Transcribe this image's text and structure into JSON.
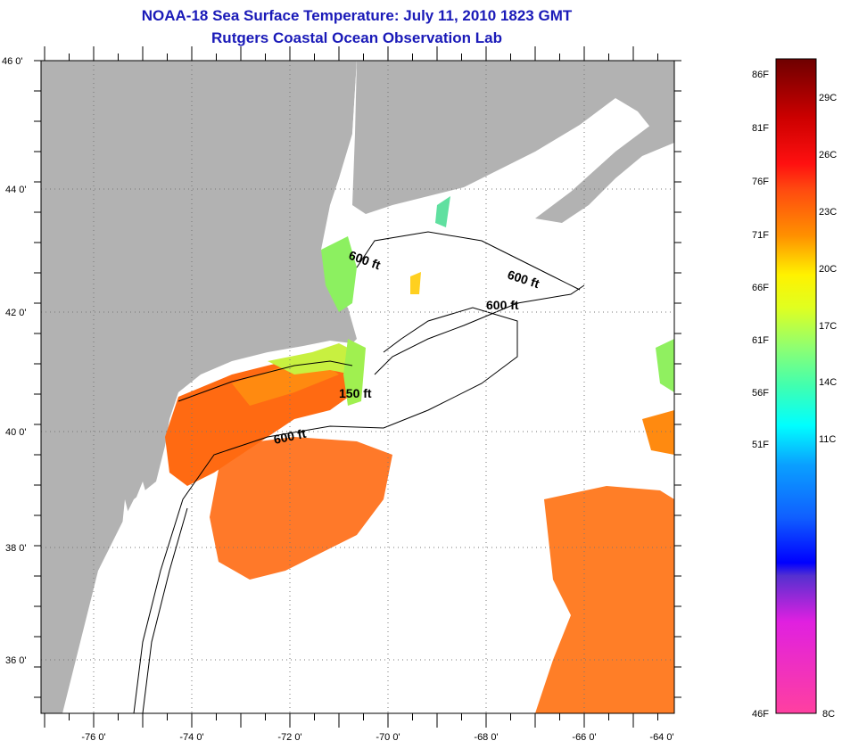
{
  "header": {
    "title": "NOAA-18 Sea Surface Temperature:  July 11, 2010 1823 GMT",
    "subtitle": "Rutgers Coastal Ocean Observation Lab"
  },
  "map": {
    "lat_labels": [
      "46 0'",
      "44 0'",
      "42 0'",
      "40 0'",
      "38 0'",
      "36 0'"
    ],
    "lon_labels": [
      "-76 0'",
      "-74 0'",
      "-72 0'",
      "-70 0'",
      "-68 0'",
      "-66 0'",
      "-64 0'"
    ],
    "contour_labels": [
      "600 ft",
      "600 ft",
      "600 ft",
      "150 ft",
      "600 ft"
    ],
    "colors": {
      "land": "#b2b2b2",
      "warm": "#ff6a10",
      "cool": "#8cf060"
    }
  },
  "colorbar": {
    "f_labels": [
      "86F",
      "81F",
      "76F",
      "71F",
      "66F",
      "61F",
      "56F",
      "51F",
      "46F"
    ],
    "c_labels": [
      "29C",
      "26C",
      "23C",
      "20C",
      "17C",
      "14C",
      "11C",
      "8C"
    ]
  }
}
